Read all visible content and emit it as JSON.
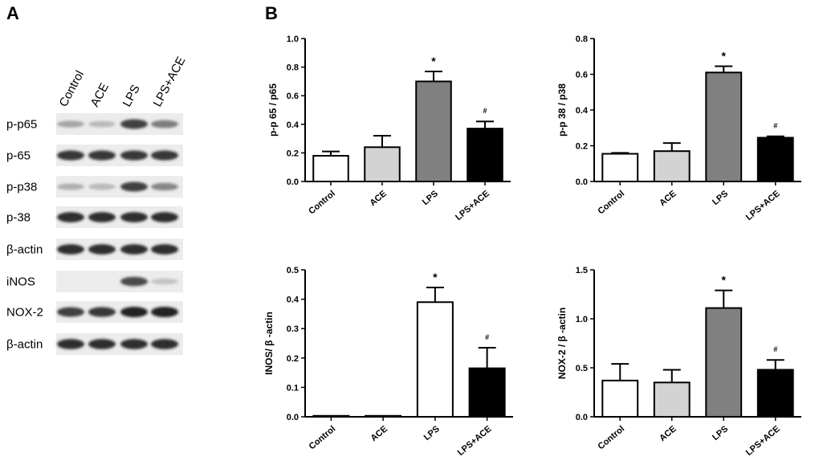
{
  "panels": {
    "a": "A",
    "b": "B"
  },
  "western_blot": {
    "lanes": [
      "Control",
      "ACE",
      "LPS",
      "LPS+ACE"
    ],
    "rows": [
      {
        "label": "p-p65",
        "intensity": [
          0.35,
          0.25,
          0.85,
          0.55
        ]
      },
      {
        "label": "p-65",
        "intensity": [
          0.9,
          0.9,
          0.9,
          0.9
        ]
      },
      {
        "label": "p-p38",
        "intensity": [
          0.3,
          0.25,
          0.85,
          0.5
        ]
      },
      {
        "label": "p-38",
        "intensity": [
          0.95,
          0.95,
          0.95,
          0.95
        ]
      },
      {
        "label": "β-actin",
        "intensity": [
          0.95,
          0.95,
          0.95,
          0.95
        ]
      },
      {
        "label": "iNOS",
        "intensity": [
          0.0,
          0.0,
          0.8,
          0.2
        ]
      },
      {
        "label": "NOX-2",
        "intensity": [
          0.85,
          0.9,
          1.0,
          1.0
        ]
      },
      {
        "label": "β-actin",
        "intensity": [
          0.95,
          0.95,
          0.95,
          0.95
        ]
      }
    ]
  },
  "chart_data": [
    {
      "type": "bar",
      "ylabel": "p-p 65 / p65",
      "categories": [
        "Control",
        "ACE",
        "LPS",
        "LPS+ACE"
      ],
      "values": [
        0.18,
        0.24,
        0.7,
        0.37
      ],
      "errors": [
        0.03,
        0.08,
        0.07,
        0.05
      ],
      "annotations": [
        "",
        "",
        "*",
        "#"
      ],
      "bar_colors": [
        "#ffffff",
        "#d3d3d3",
        "#808080",
        "#000000"
      ],
      "ylim": [
        0,
        1.0
      ],
      "yticks": [
        "0.0",
        "0.2",
        "0.4",
        "0.6",
        "0.8",
        "1.0"
      ]
    },
    {
      "type": "bar",
      "ylabel": "p-p 38 / p38",
      "categories": [
        "Control",
        "ACE",
        "LPS",
        "LPS+ACE"
      ],
      "values": [
        0.155,
        0.17,
        0.61,
        0.245
      ],
      "errors": [
        0.005,
        0.045,
        0.035,
        0.008
      ],
      "annotations": [
        "",
        "",
        "*",
        "#"
      ],
      "bar_colors": [
        "#ffffff",
        "#d3d3d3",
        "#808080",
        "#000000"
      ],
      "ylim": [
        0,
        0.8
      ],
      "yticks": [
        "0.0",
        "0.2",
        "0.4",
        "0.6",
        "0.8"
      ]
    },
    {
      "type": "bar",
      "ylabel": "INOS/ β -actin",
      "categories": [
        "Control",
        "ACE",
        "LPS",
        "LPS+ACE"
      ],
      "values": [
        0.002,
        0.001,
        0.39,
        0.165
      ],
      "errors": [
        0.0,
        0.0,
        0.05,
        0.07
      ],
      "annotations": [
        "",
        "",
        "*",
        "#"
      ],
      "bar_colors": [
        "#ffffff",
        "#d3d3d3",
        "#ffffff",
        "#000000"
      ],
      "ylim": [
        0,
        0.5
      ],
      "yticks": [
        "0.0",
        "0.1",
        "0.2",
        "0.3",
        "0.4",
        "0.5"
      ]
    },
    {
      "type": "bar",
      "ylabel": "NOX-2 / β -actin",
      "categories": [
        "Control",
        "ACE",
        "LPS",
        "LPS+ACE"
      ],
      "values": [
        0.37,
        0.35,
        1.11,
        0.48
      ],
      "errors": [
        0.17,
        0.13,
        0.18,
        0.1
      ],
      "annotations": [
        "",
        "",
        "*",
        "#"
      ],
      "bar_colors": [
        "#ffffff",
        "#d3d3d3",
        "#808080",
        "#000000"
      ],
      "ylim": [
        0,
        1.5
      ],
      "yticks": [
        "0.0",
        "0.5",
        "1.0",
        "1.5"
      ]
    }
  ]
}
